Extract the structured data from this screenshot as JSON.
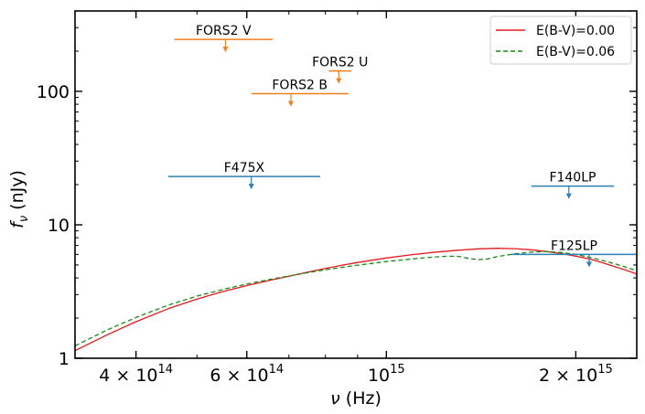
{
  "chart_data": {
    "type": "line",
    "xscale": "log",
    "yscale": "log",
    "xlim": [
      320000000000000.0,
      2500000000000000.0
    ],
    "ylim": [
      1,
      400
    ],
    "xlabel_main": "ν",
    "xlabel_unit": "(Hz)",
    "ylabel_main": "f",
    "ylabel_sub": "ν",
    "ylabel_unit": "(nJy)",
    "x_tick_labels": [
      {
        "value": 400000000000000.0,
        "mantissa": "4 × 10",
        "exp": "14"
      },
      {
        "value": 600000000000000.0,
        "mantissa": "6 × 10",
        "exp": "14"
      },
      {
        "value": 1000000000000000.0,
        "mantissa": "10",
        "exp": "15"
      },
      {
        "value": 2000000000000000.0,
        "mantissa": "2 × 10",
        "exp": "15"
      }
    ],
    "y_tick_labels": [
      {
        "value": 1,
        "label": "1"
      },
      {
        "value": 10,
        "label": "10"
      },
      {
        "value": 100,
        "label": "100"
      }
    ],
    "legend": {
      "position": "top-right",
      "entries": [
        {
          "label": "E(B-V)=0.00",
          "color": "#e31a1c",
          "style": "solid"
        },
        {
          "label": "E(B-V)=0.06",
          "color": "#1a8a1a",
          "style": "dashed"
        }
      ]
    },
    "series": [
      {
        "name": "E(B-V)=0.00",
        "color": "#e31a1c",
        "style": "solid",
        "points": [
          [
            320000000000000.0,
            1.14
          ],
          [
            360000000000000.0,
            1.5
          ],
          [
            400000000000000.0,
            1.88
          ],
          [
            450000000000000.0,
            2.35
          ],
          [
            500000000000000.0,
            2.78
          ],
          [
            550000000000000.0,
            3.16
          ],
          [
            600000000000000.0,
            3.5
          ],
          [
            650000000000000.0,
            3.82
          ],
          [
            700000000000000.0,
            4.12
          ],
          [
            750000000000000.0,
            4.42
          ],
          [
            800000000000000.0,
            4.7
          ],
          [
            850000000000000.0,
            4.98
          ],
          [
            900000000000000.0,
            5.22
          ],
          [
            1000000000000000.0,
            5.64
          ],
          [
            1100000000000000.0,
            5.98
          ],
          [
            1200000000000000.0,
            6.25
          ],
          [
            1300000000000000.0,
            6.45
          ],
          [
            1400000000000000.0,
            6.6
          ],
          [
            1500000000000000.0,
            6.66
          ],
          [
            1600000000000000.0,
            6.62
          ],
          [
            1700000000000000.0,
            6.5
          ],
          [
            1800000000000000.0,
            6.3
          ],
          [
            1900000000000000.0,
            6.08
          ],
          [
            2000000000000000.0,
            5.82
          ],
          [
            2100000000000000.0,
            5.55
          ],
          [
            2200000000000000.0,
            5.22
          ],
          [
            2300000000000000.0,
            4.88
          ],
          [
            2400000000000000.0,
            4.58
          ],
          [
            2500000000000000.0,
            4.28
          ]
        ]
      },
      {
        "name": "E(B-V)=0.06",
        "color": "#1a8a1a",
        "style": "dashed",
        "points": [
          [
            320000000000000.0,
            1.24
          ],
          [
            360000000000000.0,
            1.63
          ],
          [
            400000000000000.0,
            2.02
          ],
          [
            450000000000000.0,
            2.5
          ],
          [
            500000000000000.0,
            2.92
          ],
          [
            550000000000000.0,
            3.28
          ],
          [
            600000000000000.0,
            3.6
          ],
          [
            650000000000000.0,
            3.88
          ],
          [
            700000000000000.0,
            4.13
          ],
          [
            750000000000000.0,
            4.38
          ],
          [
            800000000000000.0,
            4.6
          ],
          [
            850000000000000.0,
            4.8
          ],
          [
            900000000000000.0,
            4.98
          ],
          [
            1000000000000000.0,
            5.3
          ],
          [
            1100000000000000.0,
            5.55
          ],
          [
            1200000000000000.0,
            5.75
          ],
          [
            1250000000000000.0,
            5.82
          ],
          [
            1300000000000000.0,
            5.8
          ],
          [
            1350000000000000.0,
            5.6
          ],
          [
            1400000000000000.0,
            5.48
          ],
          [
            1450000000000000.0,
            5.55
          ],
          [
            1500000000000000.0,
            5.78
          ],
          [
            1600000000000000.0,
            6.05
          ],
          [
            1700000000000000.0,
            6.25
          ],
          [
            1800000000000000.0,
            6.3
          ],
          [
            1900000000000000.0,
            6.2
          ],
          [
            2000000000000000.0,
            6.0
          ],
          [
            2100000000000000.0,
            5.72
          ],
          [
            2200000000000000.0,
            5.42
          ],
          [
            2300000000000000.0,
            5.12
          ],
          [
            2400000000000000.0,
            4.82
          ],
          [
            2500000000000000.0,
            4.52
          ]
        ]
      }
    ],
    "upper_limits": [
      {
        "label": "FORS2 V",
        "x_min": 460000000000000.0,
        "x_max": 660000000000000.0,
        "x_arrow": 555000000000000.0,
        "y": 245,
        "color": "#f07f1e"
      },
      {
        "label": "FORS2 U",
        "x_min": 810000000000000.0,
        "x_max": 880000000000000.0,
        "x_arrow": 840000000000000.0,
        "y": 142,
        "color": "#f07f1e"
      },
      {
        "label": "FORS2 B",
        "x_min": 610000000000000.0,
        "x_max": 870000000000000.0,
        "x_arrow": 705000000000000.0,
        "y": 96,
        "color": "#f07f1e"
      },
      {
        "label": "F475X",
        "x_min": 450000000000000.0,
        "x_max": 785000000000000.0,
        "x_arrow": 610000000000000.0,
        "y": 23,
        "color": "#2b7fb5"
      },
      {
        "label": "F140LP",
        "x_min": 1700000000000000.0,
        "x_max": 2300000000000000.0,
        "x_arrow": 1950000000000000.0,
        "y": 19.5,
        "color": "#2b7fb5"
      },
      {
        "label": "F125LP",
        "x_min": 1580000000000000.0,
        "x_max": 2500000000000000.0,
        "x_arrow": 2100000000000000.0,
        "y": 6,
        "color": "#2b7fb5"
      }
    ]
  }
}
